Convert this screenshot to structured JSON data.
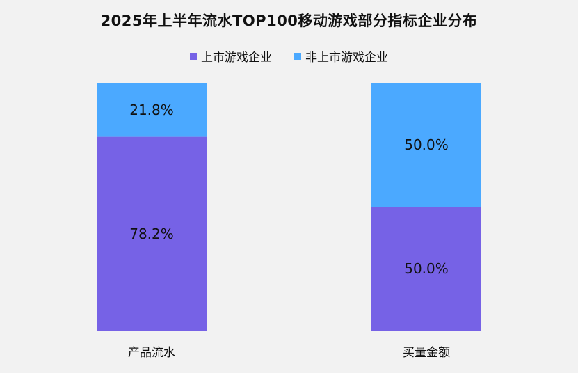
{
  "chart_data": {
    "type": "bar",
    "stacked": true,
    "title": "2025年上半年流水TOP100移动游戏部分指标企业分布",
    "categories": [
      "产品流水",
      "买量金额"
    ],
    "series": [
      {
        "name": "上市游戏企业",
        "values": [
          78.2,
          50.0
        ],
        "labels": [
          "78.2%",
          "50.0%"
        ],
        "color": "#7662e6"
      },
      {
        "name": "非上市游戏企业",
        "values": [
          21.8,
          50.0
        ],
        "labels": [
          "21.8%",
          "50.0%"
        ],
        "color": "#4ba9ff"
      }
    ],
    "ylim": [
      0,
      100
    ],
    "unit": "%",
    "legend_position": "top-center",
    "grid": false
  }
}
